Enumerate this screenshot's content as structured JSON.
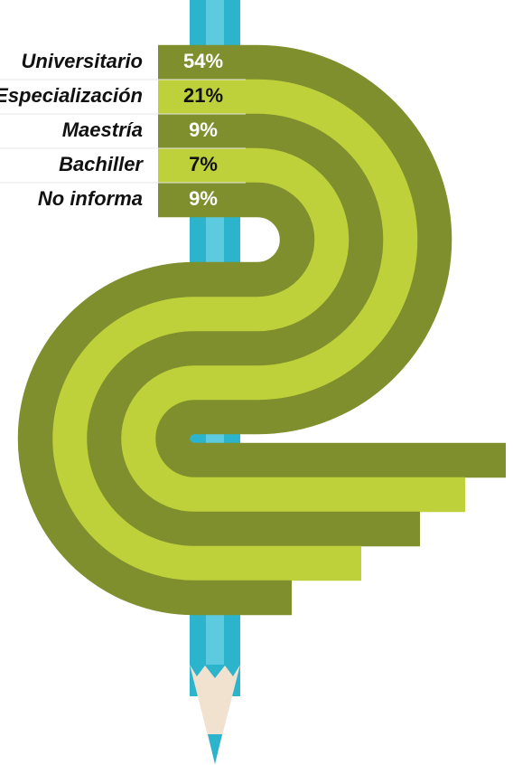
{
  "chart_data": {
    "type": "bar",
    "categories": [
      "Universitario",
      "Especialización",
      "Maestría",
      "Bachiller",
      "No informa"
    ],
    "values": [
      54,
      21,
      9,
      7,
      9
    ],
    "value_labels": [
      "54%",
      "21%",
      "9%",
      "7%",
      "9%"
    ],
    "colors": [
      "#7f8f2e",
      "#bfd13a",
      "#7f8f2e",
      "#bfd13a",
      "#7f8f2e"
    ]
  }
}
